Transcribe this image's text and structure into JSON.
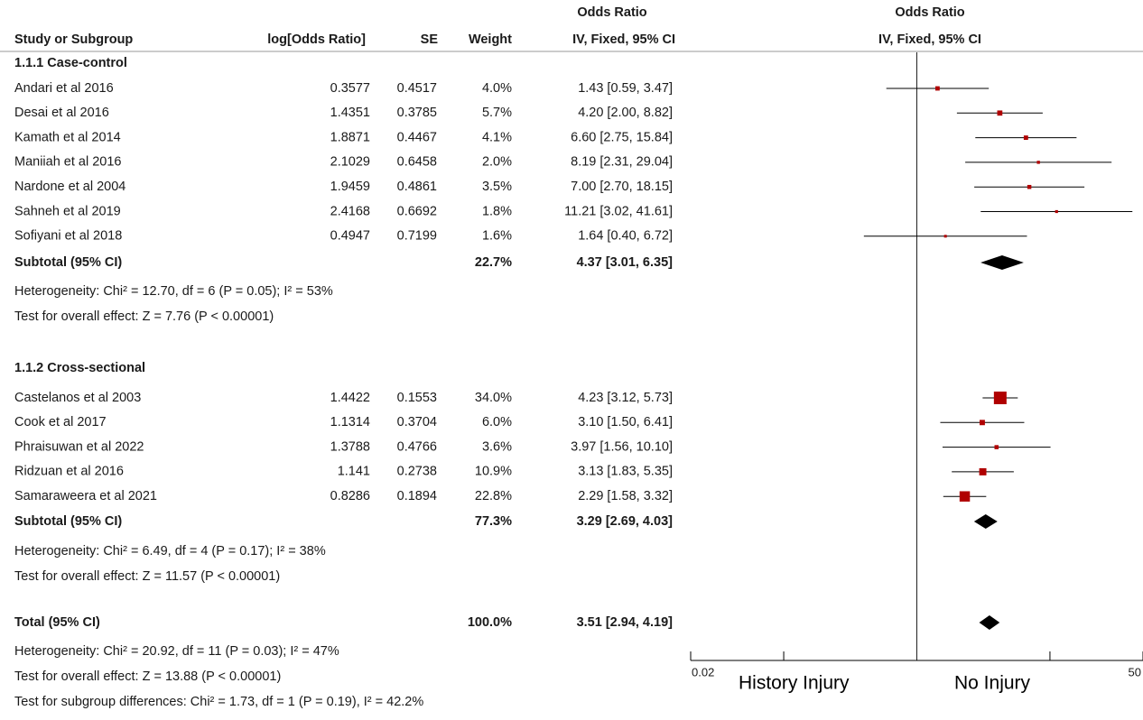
{
  "chart_data": {
    "type": "forest",
    "columns": [
      "Study or Subgroup",
      "log[Odds Ratio]",
      "SE",
      "Weight",
      "Odds Ratio",
      "IV, Fixed, 95% CI"
    ],
    "plot_header": [
      "Odds Ratio",
      "IV, Fixed, 95% CI"
    ],
    "groups": [
      {
        "title": "1.1.1 Case-control",
        "studies": [
          {
            "name": "Andari et al 2016",
            "log_or": 0.3577,
            "se": 0.4517,
            "weight": {
              "value": 4.0,
              "label": "4.0%"
            },
            "or": 1.43,
            "ci": [
              0.59,
              3.47
            ],
            "or_label": "1.43 [0.59, 3.47]"
          },
          {
            "name": "Desai et al 2016",
            "log_or": 1.4351,
            "se": 0.3785,
            "weight": {
              "value": 5.7,
              "label": "5.7%"
            },
            "or": 4.2,
            "ci": [
              2.0,
              8.82
            ],
            "or_label": "4.20 [2.00, 8.82]"
          },
          {
            "name": "Kamath et al 2014",
            "log_or": 1.8871,
            "se": 0.4467,
            "weight": {
              "value": 4.1,
              "label": "4.1%"
            },
            "or": 6.6,
            "ci": [
              2.75,
              15.84
            ],
            "or_label": "6.60 [2.75, 15.84]"
          },
          {
            "name": "Maniiah et al 2016",
            "log_or": 2.1029,
            "se": 0.6458,
            "weight": {
              "value": 2.0,
              "label": "2.0%"
            },
            "or": 8.19,
            "ci": [
              2.31,
              29.04
            ],
            "or_label": "8.19 [2.31, 29.04]"
          },
          {
            "name": "Nardone et al 2004",
            "log_or": 1.9459,
            "se": 0.4861,
            "weight": {
              "value": 3.5,
              "label": "3.5%"
            },
            "or": 7.0,
            "ci": [
              2.7,
              18.15
            ],
            "or_label": "7.00 [2.70, 18.15]"
          },
          {
            "name": "Sahneh et al 2019",
            "log_or": 2.4168,
            "se": 0.6692,
            "weight": {
              "value": 1.8,
              "label": "1.8%"
            },
            "or": 11.21,
            "ci": [
              3.02,
              41.61
            ],
            "or_label": "11.21 [3.02, 41.61]"
          },
          {
            "name": "Sofiyani et al 2018",
            "log_or": 0.4947,
            "se": 0.7199,
            "weight": {
              "value": 1.6,
              "label": "1.6%"
            },
            "or": 1.64,
            "ci": [
              0.4,
              6.72
            ],
            "or_label": "1.64 [0.40, 6.72]"
          }
        ],
        "subtotal": {
          "label": "Subtotal (95% CI)",
          "weight": {
            "value": 22.7,
            "label": "22.7%"
          },
          "or": 4.37,
          "ci": [
            3.01,
            6.35
          ],
          "or_label": "4.37 [3.01, 6.35]"
        },
        "heterogeneity": "Heterogeneity: Chi² = 12.70, df = 6 (P = 0.05); I² = 53%",
        "overall": "Test for overall effect: Z = 7.76 (P < 0.00001)"
      },
      {
        "title": "1.1.2 Cross-sectional",
        "studies": [
          {
            "name": "Castelanos et al 2003",
            "log_or": 1.4422,
            "se": 0.1553,
            "weight": {
              "value": 34.0,
              "label": "34.0%"
            },
            "or": 4.23,
            "ci": [
              3.12,
              5.73
            ],
            "or_label": "4.23 [3.12, 5.73]"
          },
          {
            "name": "Cook et al 2017",
            "log_or": 1.1314,
            "se": 0.3704,
            "weight": {
              "value": 6.0,
              "label": "6.0%"
            },
            "or": 3.1,
            "ci": [
              1.5,
              6.41
            ],
            "or_label": "3.10 [1.50, 6.41]"
          },
          {
            "name": "Phraisuwan et al 2022",
            "log_or": 1.3788,
            "se": 0.4766,
            "weight": {
              "value": 3.6,
              "label": "3.6%"
            },
            "or": 3.97,
            "ci": [
              1.56,
              10.1
            ],
            "or_label": "3.97 [1.56, 10.10]"
          },
          {
            "name": "Ridzuan et al 2016",
            "log_or": 1.141,
            "se": 0.2738,
            "weight": {
              "value": 10.9,
              "label": "10.9%"
            },
            "or": 3.13,
            "ci": [
              1.83,
              5.35
            ],
            "or_label": "3.13 [1.83, 5.35]"
          },
          {
            "name": "Samaraweera et al 2021",
            "log_or": 0.8286,
            "se": 0.1894,
            "weight": {
              "value": 22.8,
              "label": "22.8%"
            },
            "or": 2.29,
            "ci": [
              1.58,
              3.32
            ],
            "or_label": "2.29 [1.58, 3.32]"
          }
        ],
        "subtotal": {
          "label": "Subtotal (95% CI)",
          "weight": {
            "value": 77.3,
            "label": "77.3%"
          },
          "or": 3.29,
          "ci": [
            2.69,
            4.03
          ],
          "or_label": "3.29 [2.69, 4.03]"
        },
        "heterogeneity": "Heterogeneity: Chi² = 6.49, df = 4 (P = 0.17); I² = 38%",
        "overall": "Test for overall effect: Z = 11.57 (P < 0.00001)"
      }
    ],
    "total": {
      "label": "Total (95% CI)",
      "weight": {
        "value": 100.0,
        "label": "100.0%"
      },
      "or": 3.51,
      "ci": [
        2.94,
        4.19
      ],
      "or_label": "3.51 [2.94, 4.19]",
      "heterogeneity": "Heterogeneity: Chi² = 20.92, df = 11 (P = 0.03); I² = 47%",
      "overall": "Test for overall effect: Z = 13.88 (P < 0.00001)",
      "subgroup": "Test for subgroup differences: Chi² = 1.73, df = 1 (P = 0.19), I² = 42.2%"
    },
    "scale": "log",
    "xlim": [
      0.02,
      50
    ],
    "xticks": [
      0.02,
      50
    ],
    "minor_ticks": [
      0.1,
      10
    ],
    "ref_line": 1,
    "left_label": "History Injury",
    "right_label": "No Injury",
    "marker_color": "#b00000"
  }
}
